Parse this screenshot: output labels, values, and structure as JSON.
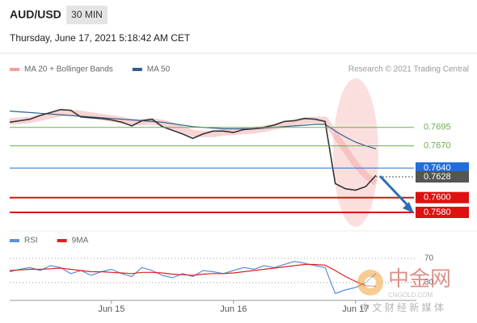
{
  "header": {
    "symbol": "AUD/USD",
    "timeframe": "30 MIN",
    "datetime": "Thursday, June 17, 2021 5:18:42 AM CET"
  },
  "credit": "Research © 2021 Trading Central",
  "watermark": {
    "logo": "中金网",
    "site": "CNGOLD.COM",
    "slogan": "中 文 财 经 新 媒 体"
  },
  "chart_data": [
    {
      "type": "line",
      "color": "#333333",
      "values": [
        0.7702,
        0.7704,
        0.7706,
        0.7711,
        0.7715,
        0.7719,
        0.7718,
        0.7709,
        0.7708,
        0.7707,
        0.7705,
        0.7702,
        0.7697,
        0.7704,
        0.7706,
        0.7696,
        0.7691,
        0.7686,
        0.768,
        0.7686,
        0.769,
        0.769,
        0.7688,
        0.7692,
        0.7693,
        0.7695,
        0.7698,
        0.7703,
        0.7704,
        0.7707,
        0.7706,
        0.7703,
        0.7619,
        0.7612,
        0.761,
        0.7615,
        0.763
      ],
      "series": [
        {
          "name": "MA 20 + Bollinger Bands",
          "color": "#f0a0a0",
          "values": [
            0.7703,
            0.7704,
            0.7705,
            0.7708,
            0.7711,
            0.7714,
            0.7715,
            0.7713,
            0.7711,
            0.7709,
            0.7707,
            0.7705,
            0.7702,
            0.7702,
            0.7703,
            0.7701,
            0.7697,
            0.7692,
            0.7687,
            0.7686,
            0.7686,
            0.7688,
            0.7689,
            0.769,
            0.7691,
            0.7693,
            0.7696,
            0.7699,
            0.7702,
            0.7704,
            0.7705,
            0.7705,
            0.7685,
            0.7665,
            0.7645,
            0.763,
            0.762
          ]
        },
        {
          "name": "MA 50",
          "color": "#2f5f8f",
          "values": [
            0.7717,
            0.7716,
            0.7715,
            0.7714,
            0.7713,
            0.7712,
            0.7711,
            0.771,
            0.7709,
            0.7708,
            0.7707,
            0.7706,
            0.7705,
            0.7704,
            0.7703,
            0.7702,
            0.77,
            0.7698,
            0.7696,
            0.7695,
            0.7694,
            0.7693,
            0.7693,
            0.7693,
            0.7693,
            0.7694,
            0.7695,
            0.7696,
            0.7697,
            0.7698,
            0.7699,
            0.7699,
            0.769,
            0.7682,
            0.7675,
            0.767,
            0.7666
          ]
        }
      ],
      "ylim": [
        0.7556,
        0.7758
      ],
      "levels": [
        {
          "value": 0.7695,
          "color": "#6ab04c",
          "boxed": false
        },
        {
          "value": 0.767,
          "label": "0.7670",
          "color": "#6ab04c",
          "boxed": false
        },
        {
          "value": 0.764,
          "label": "0.7640",
          "color": "#1f6fd6",
          "boxed": true
        },
        {
          "value": 0.7628,
          "color": "#555555",
          "boxed": true,
          "dashed": true
        },
        {
          "value": 0.76,
          "label": "0.7600",
          "color": "#dd1111",
          "boxed": true
        },
        {
          "value": 0.758,
          "label": "0.7580",
          "color": "#dd1111",
          "boxed": true
        }
      ]
    },
    {
      "type": "line",
      "categories": [
        null,
        null,
        null,
        null,
        null,
        null,
        null,
        null,
        null,
        null,
        "Jun 15",
        null,
        null,
        null,
        null,
        null,
        null,
        null,
        null,
        null,
        null,
        null,
        "Jun 16",
        null,
        null,
        null,
        null,
        null,
        null,
        null,
        null,
        null,
        null,
        null,
        "Jun 17",
        null,
        null
      ],
      "series": [
        {
          "name": "RSI",
          "color": "#5b8fd9",
          "values": [
            48,
            52,
            55,
            50,
            58,
            55,
            45,
            50,
            42,
            48,
            52,
            45,
            40,
            55,
            50,
            42,
            38,
            45,
            40,
            50,
            48,
            45,
            50,
            55,
            52,
            58,
            55,
            60,
            65,
            62,
            58,
            55,
            12,
            18,
            22,
            30,
            45
          ]
        },
        {
          "name": "9MA",
          "color": "#dd2222",
          "values": [
            50,
            51,
            52,
            52,
            53,
            54,
            52,
            50,
            48,
            48,
            47,
            46,
            45,
            47,
            47,
            46,
            44,
            43,
            42,
            44,
            45,
            45,
            46,
            48,
            50,
            52,
            54,
            56,
            58,
            60,
            60,
            59,
            50,
            40,
            32,
            25,
            24
          ]
        }
      ],
      "ylim": [
        0,
        100
      ],
      "yticks": [
        70,
        30
      ]
    }
  ]
}
